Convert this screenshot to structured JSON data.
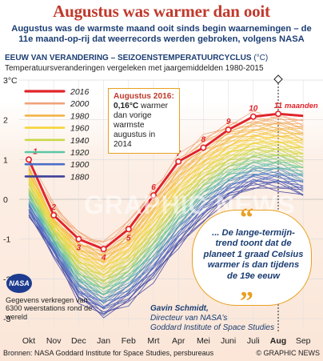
{
  "header": {
    "title": "Augustus was warmer dan ooit",
    "subtitle": "Augustus was de warmste maand ooit sinds begin waarnemingen – de 11e maand-op-rij dat weerrecords werden gebroken, volgens NASA"
  },
  "section": {
    "heading": "EEUW VAN VERANDERING – SEIZOENSTEMPERATUURCYCLUS",
    "unit": "(°C)",
    "description": "Temperatuursveranderingen vergeleken met jaargemiddelden 1980-2015"
  },
  "callout": {
    "heading": "Augustus 2016:",
    "value": "0,16°C",
    "text": "warmer dan vorige warmste augustus in 2014"
  },
  "quote": {
    "text": "... De lange-termijn-trend toont dat de planeet 1 graad Celsius warmer is dan tijdens de 19e eeuw",
    "author": "Gavin Schmidt,",
    "role_line1": "Directeur van NASA's",
    "role_line2": "Goddard Institute of Space Studies"
  },
  "nasa": {
    "logo_text": "NASA",
    "note": "Gegevens verkregen van 6300 weerstations rond de wereld"
  },
  "footer": {
    "sources": "Bronnen: NASA Goddard Institute for Space Studies, persbureaus",
    "credit": "© GRAPHIC NEWS"
  },
  "watermark": "GRAPHIC NEWS",
  "colors": {
    "title": "#c0392b",
    "navy": "#1b3d73",
    "highlight_2016": "#e0252b",
    "accent_orange": "#e8a020"
  },
  "chart_data": {
    "type": "line",
    "x_categories": [
      "Okt",
      "Nov",
      "Dec",
      "Jan",
      "Feb",
      "Mrt",
      "Apr",
      "Mei",
      "Juni",
      "Juli",
      "Aug",
      "Sep"
    ],
    "highlight_x": "Aug",
    "y_ticks": [
      "3°C",
      "2",
      "1",
      "0",
      "-1",
      "-2",
      "-3"
    ],
    "ylim": [
      -3.2,
      3.0
    ],
    "legend": {
      "position": "top-left",
      "entries": [
        {
          "label": "2016",
          "color": "#e0252b"
        },
        {
          "label": "2000",
          "color": "#f0a37a"
        },
        {
          "label": "1980",
          "color": "#f2b347"
        },
        {
          "label": "1960",
          "color": "#f4d53a"
        },
        {
          "label": "1940",
          "color": "#c9d84a"
        },
        {
          "label": "1920",
          "color": "#5cc6a4"
        },
        {
          "label": "1900",
          "color": "#4a6ec8"
        },
        {
          "label": "1880",
          "color": "#3f3f9a"
        }
      ]
    },
    "series_2016": {
      "name": "2016",
      "values": [
        1.0,
        -0.4,
        -1.0,
        -1.25,
        -0.75,
        0.1,
        0.95,
        1.3,
        1.75,
        2.08,
        2.15,
        2.1
      ],
      "month_labels": [
        "1",
        "2",
        "3",
        "4",
        "5",
        "6",
        "7",
        "8",
        "9",
        "10",
        "11"
      ],
      "last_label_suffix": "maanden"
    },
    "band": {
      "description_units": "°C",
      "upper": [
        1.05,
        -0.2,
        -0.85,
        -1.1,
        -0.6,
        0.25,
        1.05,
        1.55,
        1.9,
        2.1,
        2.1,
        2.0
      ],
      "lower": [
        -0.4,
        -1.4,
        -2.5,
        -2.95,
        -2.6,
        -2.0,
        -1.2,
        -0.5,
        0.0,
        0.3,
        0.3,
        0.1
      ]
    }
  }
}
